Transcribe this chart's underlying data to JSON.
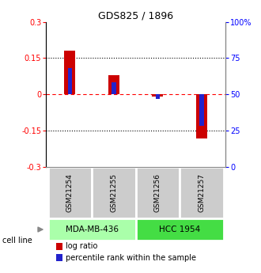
{
  "title": "GDS825 / 1896",
  "samples": [
    "GSM21254",
    "GSM21255",
    "GSM21256",
    "GSM21257"
  ],
  "log_ratios": [
    0.18,
    0.08,
    -0.01,
    -0.185
  ],
  "percentile_ranks": [
    68,
    58,
    47,
    28
  ],
  "cell_lines": [
    {
      "name": "MDA-MB-436",
      "samples": [
        0,
        1
      ],
      "color": "#aaffaa"
    },
    {
      "name": "HCC 1954",
      "samples": [
        2,
        3
      ],
      "color": "#44dd44"
    }
  ],
  "bar_color_red": "#cc0000",
  "bar_color_blue": "#2222cc",
  "ylim_left": [
    -0.3,
    0.3
  ],
  "yticks_left": [
    -0.3,
    -0.15,
    0,
    0.15,
    0.3
  ],
  "yticks_right": [
    0,
    25,
    50,
    75,
    100
  ],
  "ytick_labels_left": [
    "-0.3",
    "-0.15",
    "0",
    "0.15",
    "0.3"
  ],
  "ytick_labels_right": [
    "0",
    "25",
    "50",
    "75",
    "100%"
  ],
  "red_bar_width": 0.25,
  "blue_bar_width": 0.1,
  "sample_box_color": "#cccccc",
  "bg_color": "#ffffff"
}
